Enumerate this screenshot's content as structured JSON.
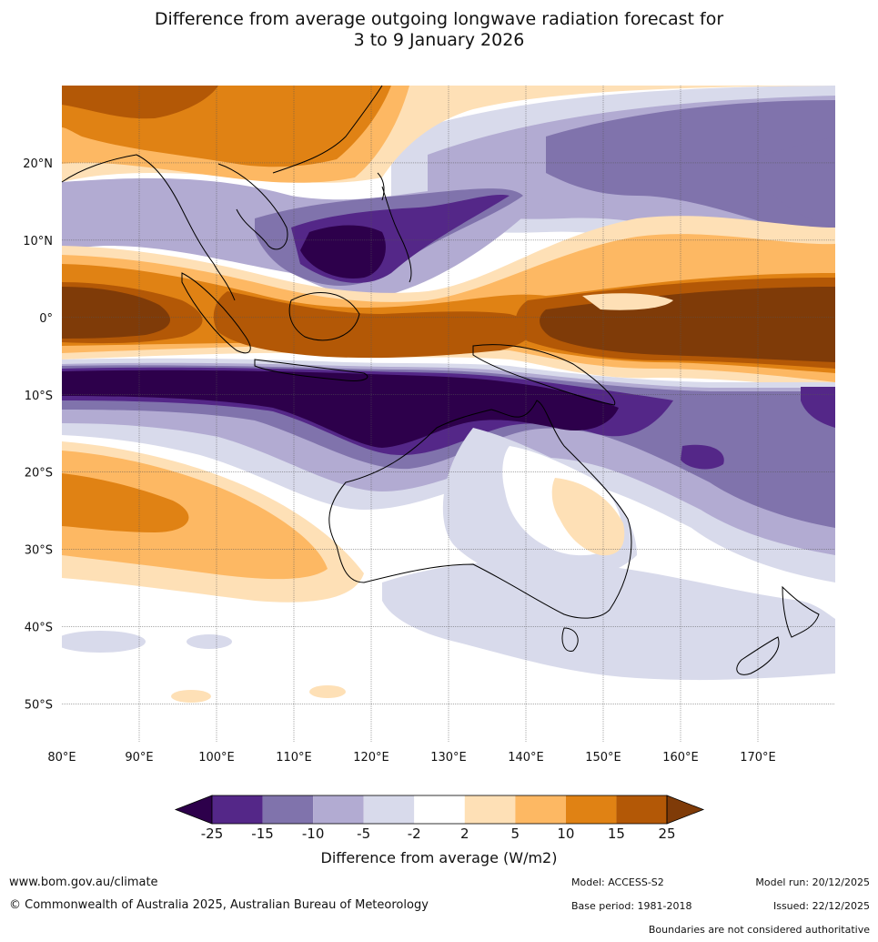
{
  "title": {
    "line1": "Difference from average outgoing longwave radiation forecast for",
    "line2": "3 to 9 January 2026"
  },
  "map": {
    "lon_labels": [
      "80°E",
      "90°E",
      "100°E",
      "110°E",
      "120°E",
      "130°E",
      "140°E",
      "150°E",
      "160°E",
      "170°E"
    ],
    "lat_labels": [
      "20°N",
      "10°N",
      "0°",
      "10°S",
      "20°S",
      "30°S",
      "40°S",
      "50°S"
    ],
    "lon_range": [
      80,
      180
    ],
    "lat_range": [
      -55,
      30
    ]
  },
  "colorbar": {
    "title": "Difference from average (W/m2)",
    "ticks": [
      "-25",
      "-15",
      "-10",
      "-5",
      "-2",
      "2",
      "5",
      "10",
      "15",
      "25"
    ],
    "colors": {
      "below_min": "#2d004b",
      "b1": "#542788",
      "b2": "#8073ac",
      "b3": "#b2abd2",
      "b4": "#d8daeb",
      "b5": "#ffffff",
      "b6": "#fee0b6",
      "b7": "#fdb863",
      "b8": "#e08214",
      "b9": "#b35806",
      "above_max": "#7f3b08"
    }
  },
  "footer": {
    "website": "www.bom.gov.au/climate",
    "copyright": "© Commonwealth of Australia 2025, Australian Bureau of Meteorology",
    "model": "Model: ACCESS-S2",
    "base_period": "Base period: 1981-2018",
    "model_run": "Model run: 20/12/2025",
    "issued": "Issued: 22/12/2025",
    "disclaimer": "Boundaries are not considered authoritative"
  }
}
